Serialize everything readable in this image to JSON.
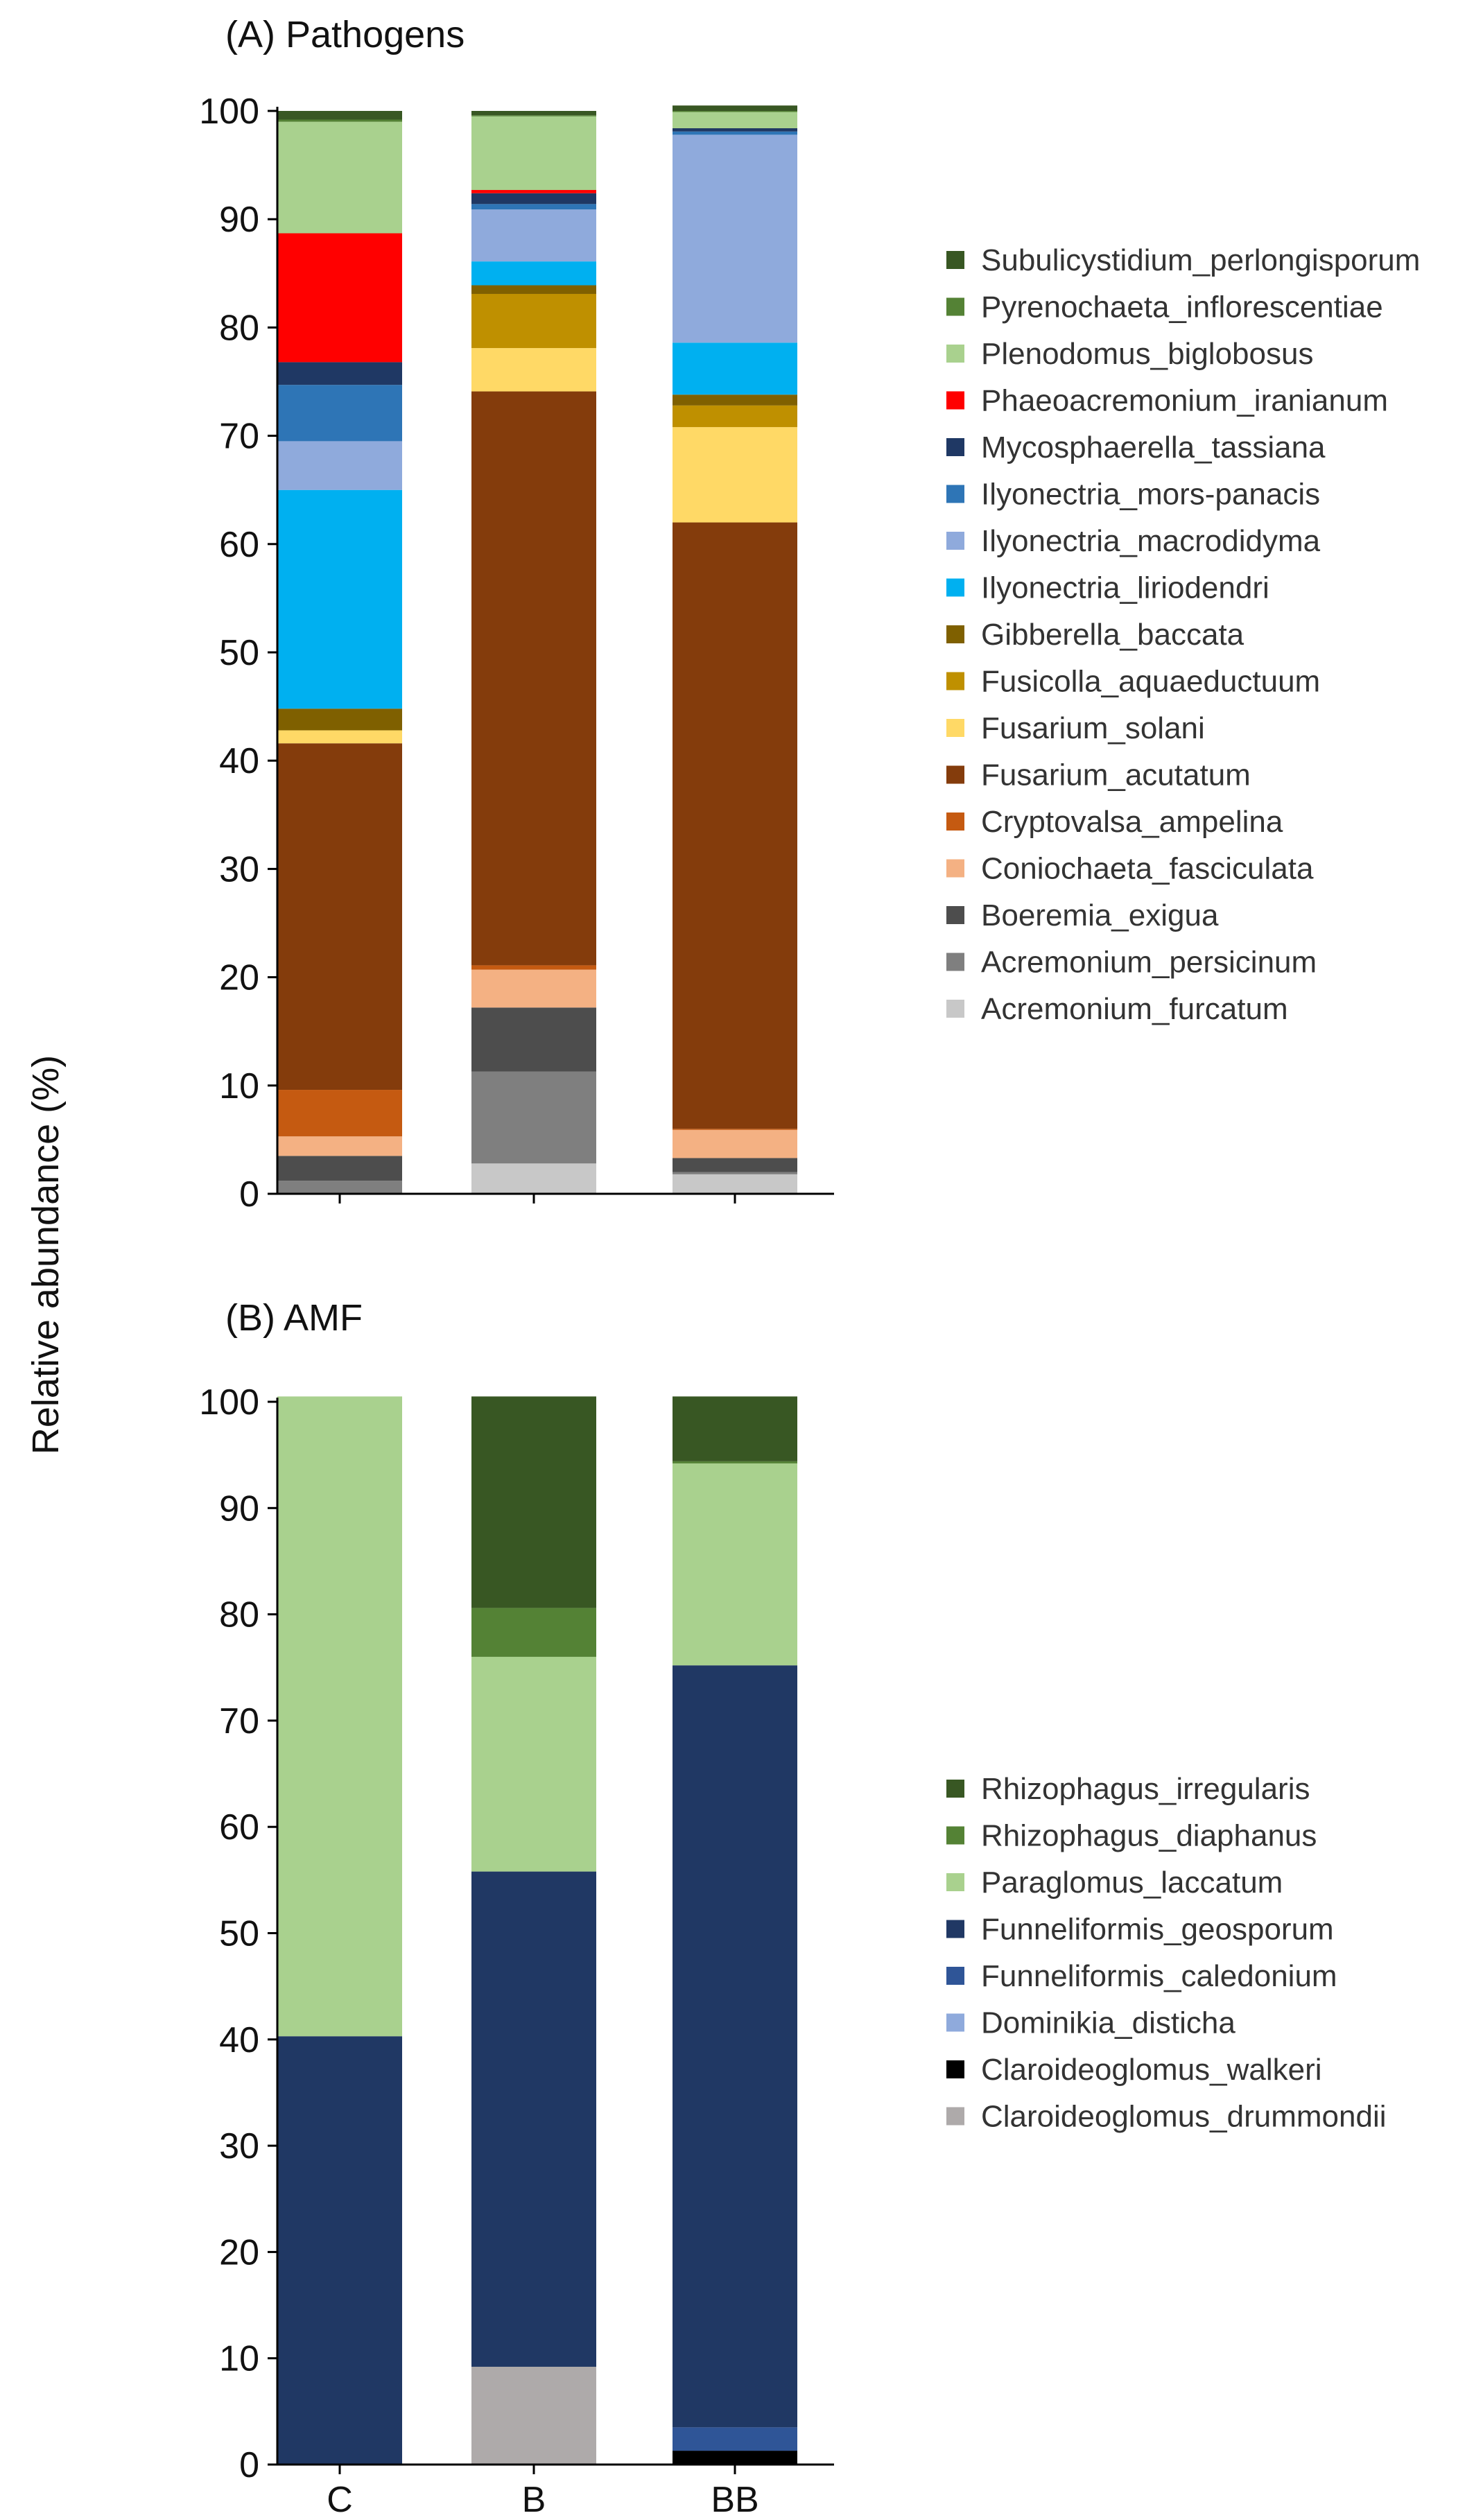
{
  "figure": {
    "ylabel": "Relative abundance (%)"
  },
  "chart_data": [
    {
      "type": "bar",
      "stacked": true,
      "title": "(A) Pathogens",
      "ylabel": "Relative abundance (%)",
      "ylim": [
        0,
        100
      ],
      "yticks": [
        "0",
        "10",
        "20",
        "30",
        "40",
        "50",
        "60",
        "70",
        "80",
        "90",
        "100"
      ],
      "categories": [
        "C",
        "B",
        "BB"
      ],
      "show_category_labels": false,
      "legend_position": "right",
      "series": [
        {
          "name": "Acremonium_furcatum",
          "color": "#c8c8c8",
          "values": [
            0.0,
            2.8,
            1.8
          ]
        },
        {
          "name": "Acremonium_persicinum",
          "color": "#7f7f7f",
          "values": [
            1.2,
            8.5,
            0.2
          ]
        },
        {
          "name": "Boeremia_exigua",
          "color": "#4d4d4d",
          "values": [
            2.3,
            5.9,
            1.3
          ]
        },
        {
          "name": "Coniochaeta_fasciculata",
          "color": "#f4b183",
          "values": [
            1.8,
            3.5,
            2.6
          ]
        },
        {
          "name": "Cryptovalsa_ampelina",
          "color": "#c55a11",
          "values": [
            4.3,
            0.4,
            0.1
          ]
        },
        {
          "name": "Fusarium_acutatum",
          "color": "#843c0c",
          "values": [
            32.0,
            53.0,
            56.0
          ]
        },
        {
          "name": "Fusarium_solani",
          "color": "#ffd966",
          "values": [
            1.2,
            4.0,
            8.8
          ]
        },
        {
          "name": "Fusicolla_aquaeductuum",
          "color": "#bf9000",
          "values": [
            0.0,
            5.0,
            2.0
          ]
        },
        {
          "name": "Gibberella_baccata",
          "color": "#7f6000",
          "values": [
            2.0,
            0.8,
            1.0
          ]
        },
        {
          "name": "Ilyonectria_liriodendri",
          "color": "#00b0f0",
          "values": [
            20.2,
            2.2,
            4.8
          ]
        },
        {
          "name": "Ilyonectria_macrodidyma",
          "color": "#8faadc",
          "values": [
            4.5,
            4.8,
            19.2
          ]
        },
        {
          "name": "Ilyonectria_mors-panacis",
          "color": "#2e75b6",
          "values": [
            5.2,
            0.5,
            0.3
          ]
        },
        {
          "name": "Mycosphaerella_tassiana",
          "color": "#1f3864",
          "values": [
            2.1,
            1.0,
            0.3
          ]
        },
        {
          "name": "Phaeoacremonium_iranianum",
          "color": "#ff0000",
          "values": [
            11.9,
            0.3,
            0.0
          ]
        },
        {
          "name": "Plenodomus_biglobosus",
          "color": "#a9d18e",
          "values": [
            10.3,
            6.8,
            1.5
          ]
        },
        {
          "name": "Pyrenochaeta_inflorescentiae",
          "color": "#548235",
          "values": [
            0.2,
            0.1,
            0.1
          ]
        },
        {
          "name": "Subulicystidium_perlongisporum",
          "color": "#385723",
          "values": [
            0.8,
            0.4,
            0.5
          ]
        }
      ]
    },
    {
      "type": "bar",
      "stacked": true,
      "title": "(B) AMF",
      "ylabel": "Relative abundance (%)",
      "ylim": [
        0,
        100
      ],
      "yticks": [
        "0",
        "10",
        "20",
        "30",
        "40",
        "50",
        "60",
        "70",
        "80",
        "90",
        "100"
      ],
      "categories": [
        "C",
        "B",
        "BB"
      ],
      "show_category_labels": true,
      "legend_position": "right",
      "series": [
        {
          "name": "Claroideoglomus_drummondii",
          "color": "#aeaaaa",
          "values": [
            0.0,
            9.2,
            0.0
          ]
        },
        {
          "name": "Claroideoglomus_walkeri",
          "color": "#000000",
          "values": [
            0.0,
            0.0,
            1.3
          ]
        },
        {
          "name": "Dominikia_disticha",
          "color": "#8faadc",
          "values": [
            0.0,
            0.0,
            0.0
          ]
        },
        {
          "name": "Funneliformis_caledonium",
          "color": "#2f5597",
          "values": [
            0.0,
            0.0,
            2.2
          ]
        },
        {
          "name": "Funneliformis_geosporum",
          "color": "#203864",
          "values": [
            40.3,
            46.6,
            71.7
          ]
        },
        {
          "name": "Paraglomus_laccatum",
          "color": "#a9d18e",
          "values": [
            60.2,
            20.2,
            19.0
          ]
        },
        {
          "name": "Rhizophagus_diaphanus",
          "color": "#548235",
          "values": [
            0.0,
            4.6,
            0.2
          ]
        },
        {
          "name": "Rhizophagus_irregularis",
          "color": "#385723",
          "values": [
            0.0,
            19.9,
            6.1
          ]
        }
      ]
    }
  ]
}
